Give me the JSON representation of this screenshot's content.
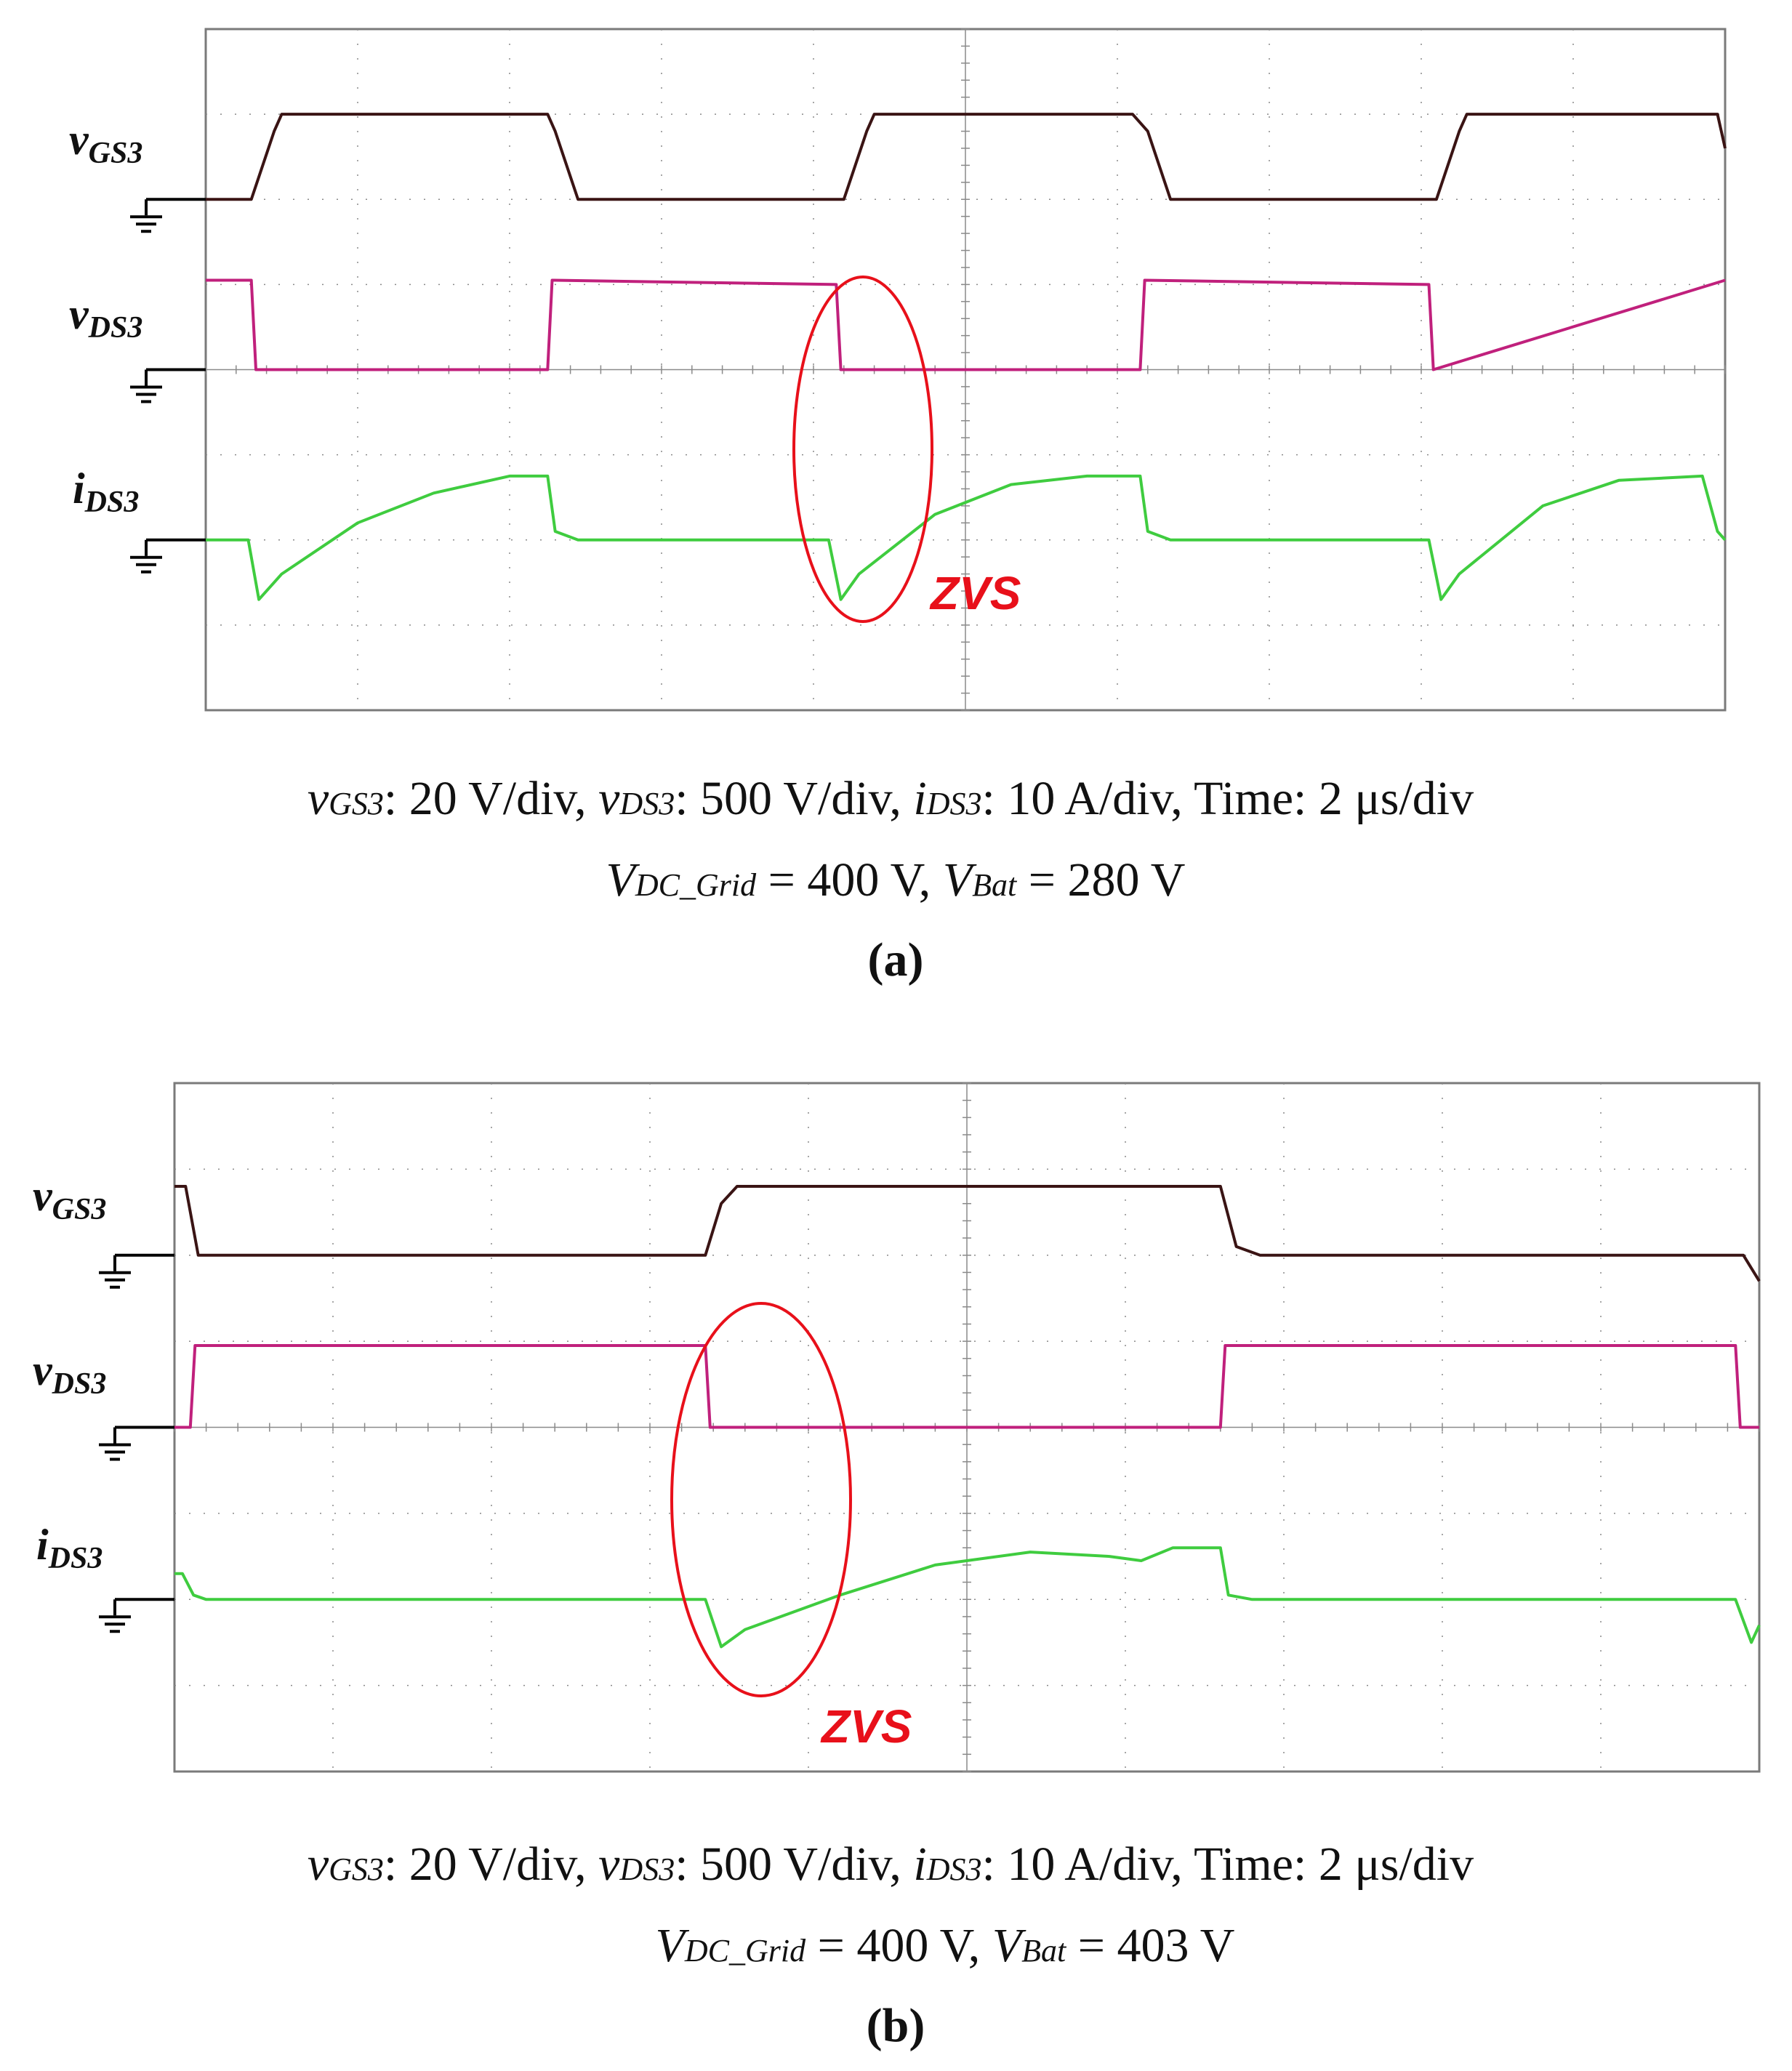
{
  "colors": {
    "vgs": "#3a1414",
    "vds": "#c0207c",
    "ids": "#3fcc3f",
    "zvs": "#e8101a",
    "grid": "#8a8a8a",
    "frame": "#7a7a7a"
  },
  "labels": {
    "vgs": {
      "main": "v",
      "sub": "GS3"
    },
    "vds": {
      "main": "v",
      "sub": "DS3"
    },
    "ids": {
      "main": "i",
      "sub": "DS3"
    },
    "zvs": "ZVS"
  },
  "panels": [
    {
      "letter": "(a)",
      "line1": {
        "vgs": "v",
        "vgs_sub": "GS3",
        "vgs_scale": ": 20 V/div, ",
        "vds": "v",
        "vds_sub": "DS3",
        "vds_scale": ": 500 V/div, ",
        "ids": "i",
        "ids_sub": "DS3",
        "ids_scale": ": 10 A/div, Time: 2 μs/div"
      },
      "line2": {
        "vdc": "V",
        "vdc_sub": "DC_Grid",
        "vdc_val": " = 400 V, ",
        "vbat": "V",
        "vbat_sub": "Bat",
        "vbat_val": " = 280 V"
      }
    },
    {
      "letter": "(b)",
      "line1": {
        "vgs": "v",
        "vgs_sub": "GS3",
        "vgs_scale": ": 20 V/div, ",
        "vds": "v",
        "vds_sub": "DS3",
        "vds_scale": ": 500 V/div, ",
        "ids": "i",
        "ids_sub": "DS3",
        "ids_scale": ": 10 A/div, Time: 2 μs/div"
      },
      "line2": {
        "vdc": "V",
        "vdc_sub": "DC_Grid",
        "vdc_val": " = 400 V, ",
        "vbat": "V",
        "vbat_sub": "Bat",
        "vbat_val": " = 403 V"
      }
    }
  ],
  "chart_data": [
    {
      "type": "line",
      "panel": "(a)",
      "x_divisions": 10,
      "y_divisions": 8,
      "time_per_div_us": 2,
      "series": [
        {
          "name": "vGS3",
          "scale": "20 V/div",
          "ground_div": 6,
          "x": [
            0,
            0.3,
            0.45,
            0.5,
            2.25,
            2.3,
            2.45,
            4.1,
            4.2,
            4.35,
            4.4,
            6.1,
            6.2,
            6.35,
            8.0,
            8.1,
            8.25,
            8.3,
            9.95,
            10.0
          ],
          "y": [
            0,
            0,
            0.8,
            1.0,
            1.0,
            0.8,
            0,
            0,
            0,
            0.8,
            1.0,
            1.0,
            0.8,
            0,
            0,
            0,
            0.8,
            1.0,
            1.0,
            0.6
          ]
        },
        {
          "name": "vDS3",
          "scale": "500 V/div",
          "ground_div": 4,
          "x": [
            -0.1,
            0.3,
            0.33,
            2.25,
            2.28,
            4.15,
            4.18,
            6.15,
            6.18,
            8.05,
            8.08,
            10.0
          ],
          "y": [
            1.05,
            1.05,
            0,
            0,
            1.05,
            1.0,
            0,
            0,
            1.05,
            1.0,
            0,
            1.05
          ]
        },
        {
          "name": "iDS3",
          "scale": "10 A/div",
          "ground_div": 2,
          "x": [
            -0.1,
            0.28,
            0.35,
            0.5,
            1.0,
            1.5,
            2.0,
            2.25,
            2.3,
            2.45,
            4.1,
            4.18,
            4.3,
            4.8,
            5.3,
            5.8,
            6.15,
            6.2,
            6.35,
            8.05,
            8.13,
            8.25,
            8.8,
            9.3,
            9.85,
            9.95,
            10.0
          ],
          "y": [
            0,
            0,
            -0.7,
            -0.4,
            0.2,
            0.55,
            0.75,
            0.75,
            0.1,
            0,
            0,
            -0.7,
            -0.4,
            0.3,
            0.65,
            0.75,
            0.75,
            0.1,
            0,
            0,
            -0.7,
            -0.4,
            0.4,
            0.7,
            0.75,
            0.1,
            0
          ]
        }
      ]
    },
    {
      "type": "line",
      "panel": "(b)",
      "x_divisions": 10,
      "y_divisions": 8,
      "time_per_div_us": 2,
      "series": [
        {
          "name": "vGS3",
          "scale": "20 V/div",
          "ground_div": 6,
          "x": [
            0.0,
            0.07,
            0.15,
            3.35,
            3.45,
            3.55,
            6.6,
            6.7,
            6.85,
            9.9,
            10.0
          ],
          "y": [
            0.8,
            0.8,
            0,
            0,
            0.6,
            0.8,
            0.8,
            0.1,
            0,
            0,
            -0.3
          ]
        },
        {
          "name": "vDS3",
          "scale": "500 V/div",
          "ground_div": 4,
          "x": [
            0,
            0.1,
            0.13,
            3.35,
            3.38,
            6.6,
            6.63,
            9.85,
            9.88,
            10.0
          ],
          "y": [
            0,
            0,
            0.95,
            0.95,
            0,
            0,
            0.95,
            0.95,
            0,
            0
          ]
        },
        {
          "name": "iDS3",
          "scale": "10 A/div",
          "ground_div": 2,
          "x": [
            0,
            0.05,
            0.12,
            0.2,
            3.35,
            3.45,
            3.6,
            4.2,
            4.8,
            5.4,
            5.9,
            6.1,
            6.3,
            6.6,
            6.65,
            6.8,
            9.85,
            9.95,
            10.0
          ],
          "y": [
            0.3,
            0.3,
            0.05,
            0,
            0,
            -0.55,
            -0.35,
            0.05,
            0.4,
            0.55,
            0.5,
            0.45,
            0.6,
            0.6,
            0.05,
            0,
            0,
            -0.5,
            -0.3
          ]
        }
      ]
    }
  ]
}
